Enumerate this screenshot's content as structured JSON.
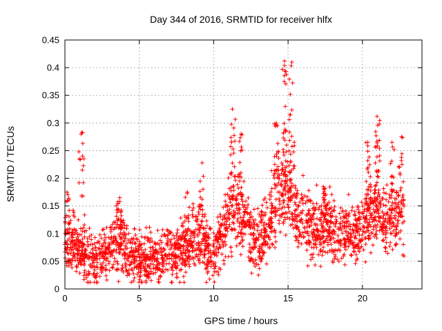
{
  "chart_data": {
    "type": "scatter",
    "title": "Day 344 of 2016, SRMTID for receiver hlfx",
    "xlabel": "GPS time / hours",
    "ylabel": "SRMTID / TECUs",
    "xlim": [
      0,
      24
    ],
    "ylim": [
      0,
      0.45
    ],
    "xticks": [
      0,
      5,
      10,
      15,
      20
    ],
    "xtick_labels": [
      "0",
      "5",
      "10",
      "15",
      "20"
    ],
    "yticks": [
      0,
      0.05,
      0.1,
      0.15,
      0.2,
      0.25,
      0.3,
      0.35,
      0.4,
      0.45
    ],
    "ytick_labels": [
      "0",
      "0.05",
      "0.1",
      "0.15",
      "0.2",
      "0.25",
      "0.3",
      "0.35",
      "0.4",
      "0.45"
    ],
    "grid": true,
    "marker": "+",
    "color": "#ff0000",
    "x_max_data": 22.8,
    "point_count": 2400,
    "baseline_profile": [
      [
        0.0,
        0.095
      ],
      [
        0.5,
        0.08
      ],
      [
        1.0,
        0.07
      ],
      [
        1.5,
        0.06
      ],
      [
        2.0,
        0.055
      ],
      [
        2.5,
        0.06
      ],
      [
        3.0,
        0.07
      ],
      [
        3.5,
        0.09
      ],
      [
        4.0,
        0.075
      ],
      [
        4.5,
        0.06
      ],
      [
        5.0,
        0.055
      ],
      [
        5.5,
        0.055
      ],
      [
        6.0,
        0.055
      ],
      [
        6.5,
        0.06
      ],
      [
        7.0,
        0.065
      ],
      [
        7.5,
        0.065
      ],
      [
        8.0,
        0.07
      ],
      [
        8.5,
        0.085
      ],
      [
        9.0,
        0.1
      ],
      [
        9.5,
        0.07
      ],
      [
        10.0,
        0.06
      ],
      [
        10.5,
        0.1
      ],
      [
        11.0,
        0.13
      ],
      [
        11.5,
        0.14
      ],
      [
        12.0,
        0.13
      ],
      [
        12.5,
        0.1
      ],
      [
        13.0,
        0.09
      ],
      [
        13.5,
        0.1
      ],
      [
        14.0,
        0.13
      ],
      [
        14.5,
        0.17
      ],
      [
        15.0,
        0.18
      ],
      [
        15.5,
        0.14
      ],
      [
        16.0,
        0.12
      ],
      [
        16.5,
        0.11
      ],
      [
        17.0,
        0.1
      ],
      [
        17.5,
        0.115
      ],
      [
        18.0,
        0.11
      ],
      [
        18.5,
        0.1
      ],
      [
        19.0,
        0.1
      ],
      [
        19.5,
        0.1
      ],
      [
        20.0,
        0.11
      ],
      [
        20.5,
        0.14
      ],
      [
        21.0,
        0.14
      ],
      [
        21.5,
        0.12
      ],
      [
        22.0,
        0.13
      ],
      [
        22.8,
        0.14
      ]
    ],
    "spread": 0.028,
    "bursts": [
      {
        "x": 0.15,
        "y_min": 0.1,
        "y_max": 0.175,
        "n": 14
      },
      {
        "x": 1.1,
        "y_min": 0.16,
        "y_max": 0.283,
        "n": 14
      },
      {
        "x": 3.7,
        "y_min": 0.11,
        "y_max": 0.165,
        "n": 12
      },
      {
        "x": 8.2,
        "y_min": 0.1,
        "y_max": 0.175,
        "n": 10
      },
      {
        "x": 9.2,
        "y_min": 0.12,
        "y_max": 0.228,
        "n": 12
      },
      {
        "x": 11.3,
        "y_min": 0.16,
        "y_max": 0.325,
        "n": 22
      },
      {
        "x": 11.8,
        "y_min": 0.16,
        "y_max": 0.28,
        "n": 18
      },
      {
        "x": 14.2,
        "y_min": 0.2,
        "y_max": 0.3,
        "n": 18
      },
      {
        "x": 14.75,
        "y_min": 0.2,
        "y_max": 0.412,
        "n": 28
      },
      {
        "x": 15.25,
        "y_min": 0.18,
        "y_max": 0.41,
        "n": 26
      },
      {
        "x": 17.4,
        "y_min": 0.13,
        "y_max": 0.185,
        "n": 14
      },
      {
        "x": 20.4,
        "y_min": 0.17,
        "y_max": 0.265,
        "n": 16
      },
      {
        "x": 21.0,
        "y_min": 0.19,
        "y_max": 0.312,
        "n": 22
      },
      {
        "x": 22.0,
        "y_min": 0.14,
        "y_max": 0.265,
        "n": 14
      },
      {
        "x": 22.6,
        "y_min": 0.16,
        "y_max": 0.275,
        "n": 12
      }
    ]
  }
}
